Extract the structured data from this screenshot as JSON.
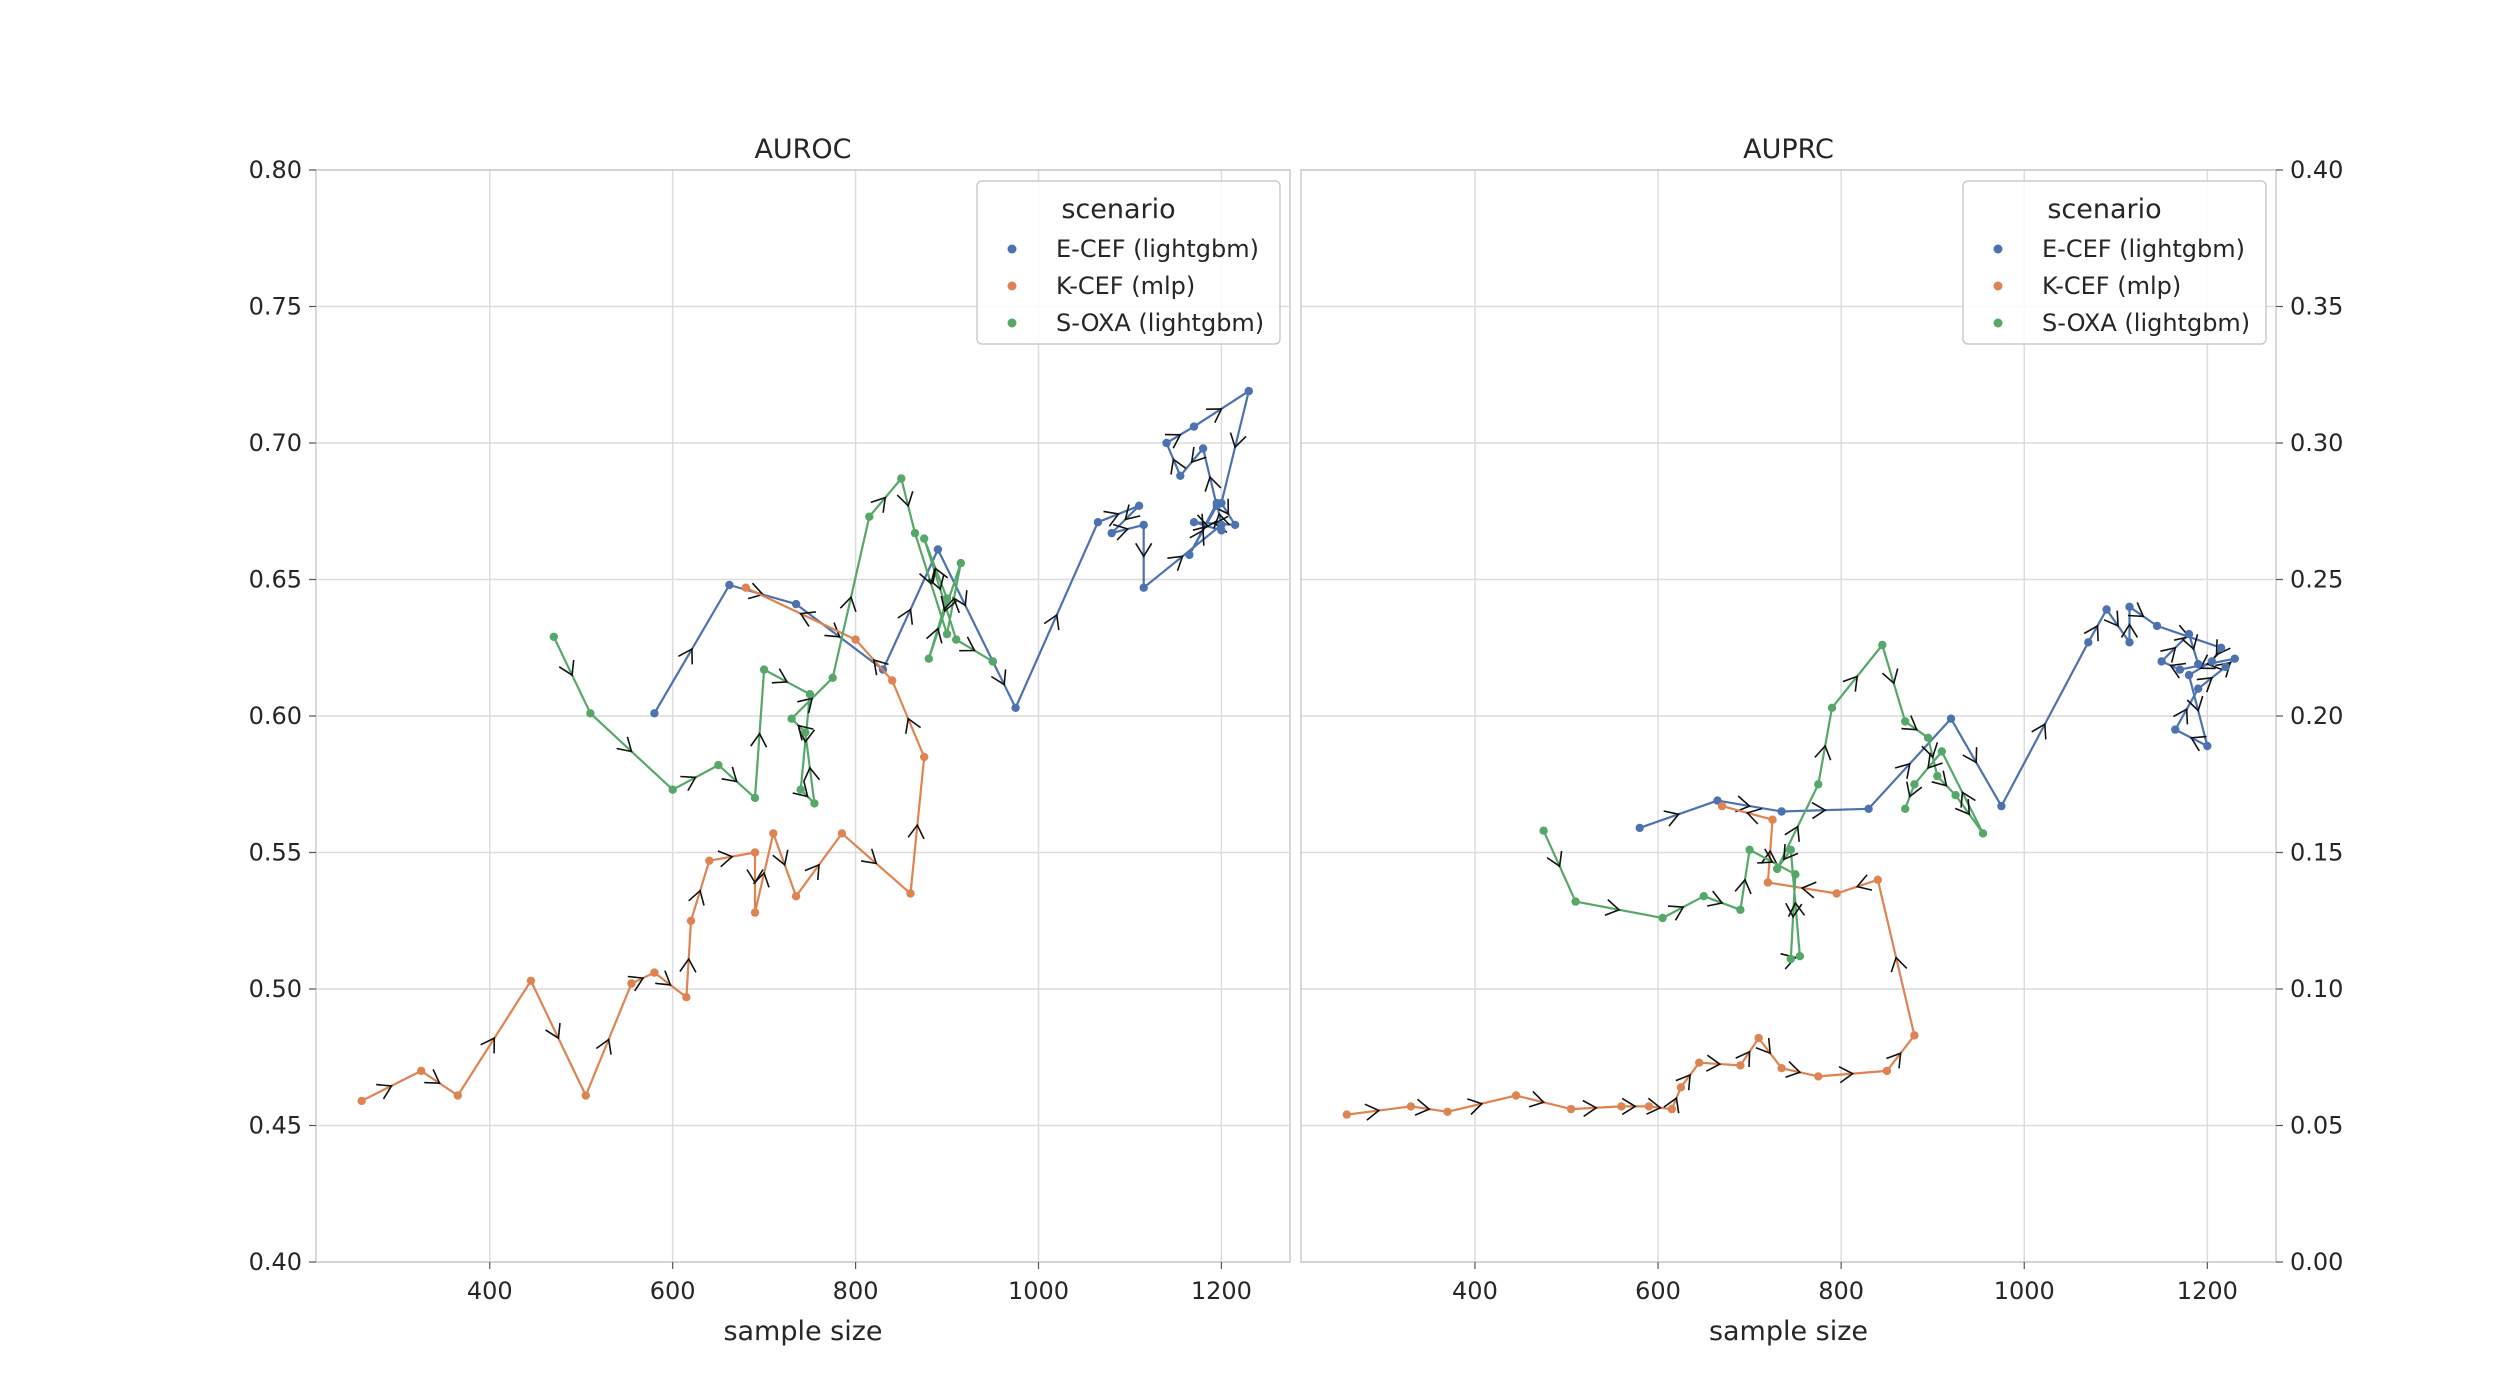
{
  "chart_data": [
    {
      "type": "line",
      "title": "AUROC",
      "xlabel": "sample size",
      "ylabel": "",
      "xlim": [
        210,
        1275
      ],
      "ylim": [
        0.4,
        0.8
      ],
      "xticks": [
        400,
        600,
        800,
        1000,
        1200
      ],
      "yticks": [
        0.4,
        0.45,
        0.5,
        0.55,
        0.6,
        0.65,
        0.7,
        0.75,
        0.8
      ],
      "ytick_side": "left",
      "grid": true,
      "arrows": true,
      "legend": {
        "title": "scenario",
        "position": "top-right"
      },
      "series": [
        {
          "name": "E-CEF (lightgbm)",
          "color": "#4c72b0",
          "points": [
            [
              580,
              0.601
            ],
            [
              662,
              0.648
            ],
            [
              735,
              0.641
            ],
            [
              830,
              0.617
            ],
            [
              890,
              0.661
            ],
            [
              950,
              0.62
            ],
            [
              975,
              0.603
            ],
            [
              1065,
              0.671
            ],
            [
              1110,
              0.677
            ],
            [
              1080,
              0.667
            ],
            [
              1115,
              0.67
            ],
            [
              1115,
              0.647
            ],
            [
              1200,
              0.67
            ],
            [
              1195,
              0.678
            ],
            [
              1165,
              0.659
            ],
            [
              1195,
              0.677
            ],
            [
              1180,
              0.698
            ],
            [
              1155,
              0.688
            ],
            [
              1140,
              0.7
            ],
            [
              1170,
              0.706
            ],
            [
              1230,
              0.719
            ],
            [
              1200,
              0.678
            ],
            [
              1215,
              0.67
            ],
            [
              1170,
              0.671
            ],
            [
              1200,
              0.668
            ]
          ]
        },
        {
          "name": "K-CEF (mlp)",
          "color": "#dd8452",
          "points": [
            [
              260,
              0.459
            ],
            [
              325,
              0.47
            ],
            [
              365,
              0.461
            ],
            [
              445,
              0.503
            ],
            [
              505,
              0.461
            ],
            [
              555,
              0.502
            ],
            [
              580,
              0.506
            ],
            [
              615,
              0.497
            ],
            [
              620,
              0.525
            ],
            [
              640,
              0.547
            ],
            [
              690,
              0.55
            ],
            [
              690,
              0.528
            ],
            [
              710,
              0.557
            ],
            [
              735,
              0.534
            ],
            [
              785,
              0.557
            ],
            [
              860,
              0.535
            ],
            [
              875,
              0.585
            ],
            [
              840,
              0.613
            ],
            [
              800,
              0.628
            ],
            [
              680,
              0.647
            ]
          ]
        },
        {
          "name": "S-OXA (lightgbm)",
          "color": "#55a868",
          "points": [
            [
              470,
              0.629
            ],
            [
              510,
              0.601
            ],
            [
              600,
              0.573
            ],
            [
              650,
              0.582
            ],
            [
              690,
              0.57
            ],
            [
              700,
              0.617
            ],
            [
              750,
              0.608
            ],
            [
              740,
              0.573
            ],
            [
              755,
              0.568
            ],
            [
              745,
              0.594
            ],
            [
              730,
              0.599
            ],
            [
              775,
              0.614
            ],
            [
              815,
              0.673
            ],
            [
              850,
              0.687
            ],
            [
              865,
              0.667
            ],
            [
              900,
              0.63
            ],
            [
              915,
              0.656
            ],
            [
              880,
              0.621
            ],
            [
              900,
              0.643
            ],
            [
              875,
              0.665
            ],
            [
              910,
              0.628
            ],
            [
              950,
              0.62
            ]
          ]
        }
      ]
    },
    {
      "type": "line",
      "title": "AUPRC",
      "xlabel": "sample size",
      "ylabel": "",
      "xlim": [
        210,
        1275
      ],
      "ylim": [
        0.0,
        0.4
      ],
      "xticks": [
        400,
        600,
        800,
        1000,
        1200
      ],
      "yticks": [
        0.0,
        0.05,
        0.1,
        0.15,
        0.2,
        0.25,
        0.3,
        0.35,
        0.4
      ],
      "ytick_side": "right",
      "grid": true,
      "arrows": true,
      "legend": {
        "title": "scenario",
        "position": "top-right"
      },
      "series": [
        {
          "name": "E-CEF (lightgbm)",
          "color": "#4c72b0",
          "points": [
            [
              580,
              0.159
            ],
            [
              665,
              0.169
            ],
            [
              735,
              0.165
            ],
            [
              830,
              0.166
            ],
            [
              920,
              0.199
            ],
            [
              975,
              0.167
            ],
            [
              1070,
              0.227
            ],
            [
              1090,
              0.239
            ],
            [
              1115,
              0.227
            ],
            [
              1115,
              0.24
            ],
            [
              1145,
              0.233
            ],
            [
              1215,
              0.225
            ],
            [
              1205,
              0.22
            ],
            [
              1180,
              0.215
            ],
            [
              1200,
              0.189
            ],
            [
              1165,
              0.195
            ],
            [
              1190,
              0.21
            ],
            [
              1220,
              0.218
            ],
            [
              1230,
              0.221
            ],
            [
              1170,
              0.217
            ],
            [
              1150,
              0.22
            ],
            [
              1180,
              0.23
            ],
            [
              1190,
              0.219
            ]
          ]
        },
        {
          "name": "K-CEF (mlp)",
          "color": "#dd8452",
          "points": [
            [
              260,
              0.054
            ],
            [
              330,
              0.057
            ],
            [
              370,
              0.055
            ],
            [
              445,
              0.061
            ],
            [
              505,
              0.056
            ],
            [
              560,
              0.057
            ],
            [
              590,
              0.057
            ],
            [
              615,
              0.056
            ],
            [
              625,
              0.064
            ],
            [
              645,
              0.073
            ],
            [
              690,
              0.072
            ],
            [
              710,
              0.082
            ],
            [
              735,
              0.071
            ],
            [
              775,
              0.068
            ],
            [
              850,
              0.07
            ],
            [
              880,
              0.083
            ],
            [
              840,
              0.14
            ],
            [
              795,
              0.135
            ],
            [
              720,
              0.139
            ],
            [
              725,
              0.162
            ],
            [
              670,
              0.167
            ]
          ]
        },
        {
          "name": "S-OXA (lightgbm)",
          "color": "#55a868",
          "points": [
            [
              475,
              0.158
            ],
            [
              510,
              0.132
            ],
            [
              605,
              0.126
            ],
            [
              650,
              0.134
            ],
            [
              690,
              0.129
            ],
            [
              700,
              0.151
            ],
            [
              750,
              0.142
            ],
            [
              745,
              0.111
            ],
            [
              755,
              0.112
            ],
            [
              745,
              0.151
            ],
            [
              730,
              0.144
            ],
            [
              775,
              0.175
            ],
            [
              790,
              0.203
            ],
            [
              845,
              0.226
            ],
            [
              870,
              0.198
            ],
            [
              895,
              0.192
            ],
            [
              905,
              0.178
            ],
            [
              925,
              0.171
            ],
            [
              955,
              0.157
            ],
            [
              910,
              0.187
            ],
            [
              880,
              0.175
            ],
            [
              870,
              0.166
            ]
          ]
        }
      ]
    }
  ]
}
